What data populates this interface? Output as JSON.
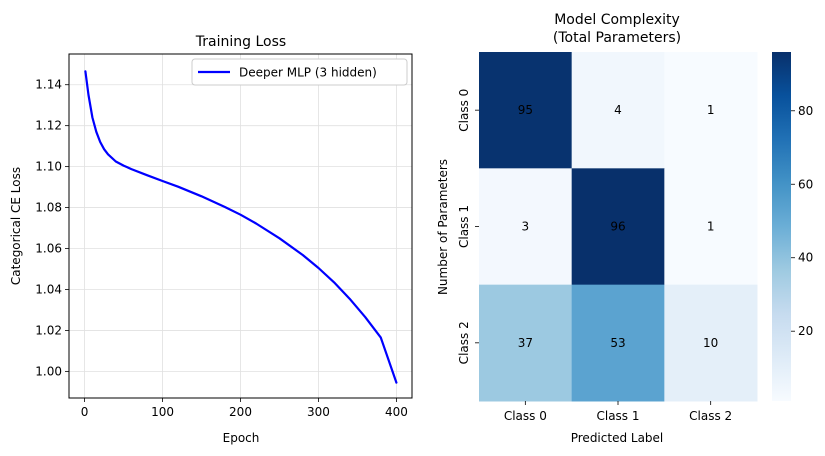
{
  "chart_data": [
    {
      "type": "line",
      "title": "Training Loss",
      "xlabel": "Epoch",
      "ylabel": "Categorical CE Loss",
      "xlim": [
        -20,
        420
      ],
      "ylim": [
        0.987,
        1.155
      ],
      "xticks": [
        0,
        100,
        200,
        300,
        400
      ],
      "yticks": [
        1.0,
        1.02,
        1.04,
        1.06,
        1.08,
        1.1,
        1.12,
        1.14
      ],
      "grid": true,
      "legend_position": "upper-right",
      "series": [
        {
          "name": "Deeper MLP (3 hidden)",
          "color": "#0000ff",
          "x": [
            1,
            5,
            10,
            15,
            20,
            25,
            30,
            40,
            50,
            60,
            80,
            100,
            120,
            150,
            180,
            200,
            220,
            250,
            280,
            300,
            320,
            340,
            360,
            380,
            400
          ],
          "y": [
            1.1465,
            1.135,
            1.124,
            1.117,
            1.112,
            1.1085,
            1.106,
            1.1025,
            1.1005,
            1.0988,
            1.0958,
            1.093,
            1.0902,
            1.0855,
            1.0803,
            1.0765,
            1.0722,
            1.065,
            1.0568,
            1.0505,
            1.0435,
            1.0355,
            1.0265,
            1.0165,
            0.9945
          ]
        }
      ]
    },
    {
      "type": "heatmap",
      "title_lines": [
        "Model Complexity",
        "(Total Parameters)"
      ],
      "xlabel": "Predicted Label",
      "ylabel": "Number of Parameters",
      "x_categories": [
        "Class 0",
        "Class 1",
        "Class 2"
      ],
      "y_categories": [
        "Class 0",
        "Class 1",
        "Class 2"
      ],
      "values": [
        [
          95,
          4,
          1
        ],
        [
          3,
          96,
          1
        ],
        [
          37,
          53,
          10
        ]
      ],
      "colormap": "Blues",
      "vmin": 1,
      "vmax": 96,
      "colorbar_ticks": [
        20,
        40,
        60,
        80
      ]
    }
  ]
}
